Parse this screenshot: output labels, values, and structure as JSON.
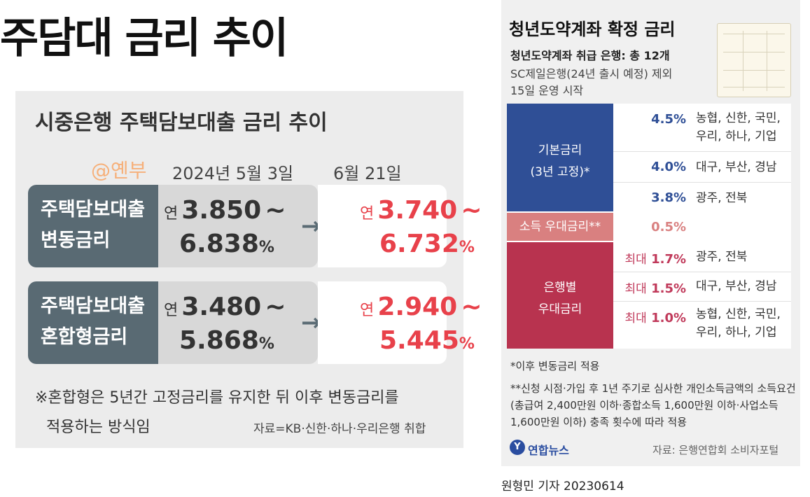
{
  "left": {
    "main_title": "주담대 금리 추이",
    "card_title": "시중은행 주택담보대출 금리 추이",
    "watermark": "@옌부",
    "date_before": "2024년 5월 3일",
    "date_after": "6월 21일",
    "rows": [
      {
        "label_line1": "주택담보대출",
        "label_line2": "변동금리",
        "before_prefix": "연",
        "before_low": "3.850",
        "before_sep": "~",
        "before_high": "6.838",
        "before_unit": "%",
        "after_prefix": "연",
        "after_low": "3.740",
        "after_sep": "~",
        "after_high": "6.732",
        "after_unit": "%"
      },
      {
        "label_line1": "주택담보대출",
        "label_line2": "혼합형금리",
        "before_prefix": "연",
        "before_low": "3.480",
        "before_sep": "~",
        "before_high": "5.868",
        "before_unit": "%",
        "after_prefix": "연",
        "after_low": "2.940",
        "after_sep": "~",
        "after_high": "5.445",
        "after_unit": "%"
      }
    ],
    "arrow": "→",
    "note_line1": "※혼합형은 5년간 고정금리를 유지한 뒤 이후 변동금리를",
    "note_line2": "적용하는 방식임",
    "source": "자료=KB·신한·하나·우리은행 취합"
  },
  "right": {
    "title": "청년도약계좌 확정 금리",
    "sub1": "청년도약계좌 취급 은행: 총 12개",
    "sub2": "SC제일은행(24년 출시 예정) 제외",
    "sub3": "15일 운영 시작",
    "base_label_1": "기본금리",
    "base_label_2": "(3년 고정)*",
    "base_rates": [
      {
        "rate": "4.5%",
        "banks_1": "농협, 신한, 국민,",
        "banks_2": "우리, 하나, 기업"
      },
      {
        "rate": "4.0%",
        "banks_1": "대구, 부산, 경남",
        "banks_2": ""
      },
      {
        "rate": "3.8%",
        "banks_1": "광주, 전북",
        "banks_2": ""
      }
    ],
    "income_label": "소득 우대금리**",
    "income_rate": "0.5%",
    "bank_label_1": "은행별",
    "bank_label_2": "우대금리",
    "max_label": "최대",
    "bank_rates": [
      {
        "rate": "1.7%",
        "banks_1": "광주, 전북",
        "banks_2": ""
      },
      {
        "rate": "1.5%",
        "banks_1": "대구, 부산, 경남",
        "banks_2": ""
      },
      {
        "rate": "1.0%",
        "banks_1": "농협, 신한, 국민,",
        "banks_2": "우리, 하나, 기업"
      }
    ],
    "footnote1": "*이후 변동금리 적용",
    "footnote2": "**신청 시점·가입 후 1년 주기로 심사한 개인소득금액의 소득요건(총급여 2,400만원 이하·종합소득 1,600만원 이하·사업소득 1,600만원 이하) 충족 횟수에 따라 적용",
    "logo": "연합뉴스",
    "source": "자료: 은행연합회 소비자포털",
    "credit": "원형민 기자  20230614"
  },
  "colors": {
    "blue": "#2f4f96",
    "pink": "#d98080",
    "red": "#b8334f",
    "accent_red": "#e8414a",
    "slate": "#596a73"
  }
}
